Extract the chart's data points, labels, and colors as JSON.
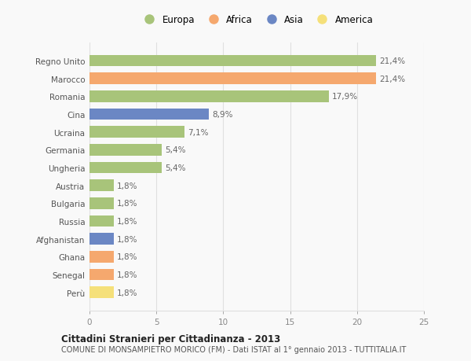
{
  "categories": [
    "Perù",
    "Senegal",
    "Ghana",
    "Afghanistan",
    "Russia",
    "Bulgaria",
    "Austria",
    "Ungheria",
    "Germania",
    "Ucraina",
    "Cina",
    "Romania",
    "Marocco",
    "Regno Unito"
  ],
  "values": [
    1.8,
    1.8,
    1.8,
    1.8,
    1.8,
    1.8,
    1.8,
    5.4,
    5.4,
    7.1,
    8.9,
    17.9,
    21.4,
    21.4
  ],
  "colors": [
    "#f5e07a",
    "#f5a86e",
    "#f5a86e",
    "#6b87c4",
    "#a8c47a",
    "#a8c47a",
    "#a8c47a",
    "#a8c47a",
    "#a8c47a",
    "#a8c47a",
    "#6b87c4",
    "#a8c47a",
    "#f5a86e",
    "#a8c47a"
  ],
  "labels": [
    "1,8%",
    "1,8%",
    "1,8%",
    "1,8%",
    "1,8%",
    "1,8%",
    "1,8%",
    "5,4%",
    "5,4%",
    "7,1%",
    "8,9%",
    "17,9%",
    "21,4%",
    "21,4%"
  ],
  "title1": "Cittadini Stranieri per Cittadinanza - 2013",
  "title2": "COMUNE DI MONSAMPIETRO MORICO (FM) - Dati ISTAT al 1° gennaio 2013 - TUTTITALIA.IT",
  "xlim": [
    0,
    25
  ],
  "xticks": [
    0,
    5,
    10,
    15,
    20,
    25
  ],
  "legend": [
    {
      "label": "Europa",
      "color": "#a8c47a"
    },
    {
      "label": "Africa",
      "color": "#f5a86e"
    },
    {
      "label": "Asia",
      "color": "#6b87c4"
    },
    {
      "label": "America",
      "color": "#f5e07a"
    }
  ],
  "background_color": "#f9f9f9",
  "grid_color": "#e0e0e0",
  "bar_height": 0.65,
  "label_fontsize": 7.5,
  "tick_fontsize": 7.5,
  "label_color": "#666666",
  "ylabel_color": "#555555"
}
